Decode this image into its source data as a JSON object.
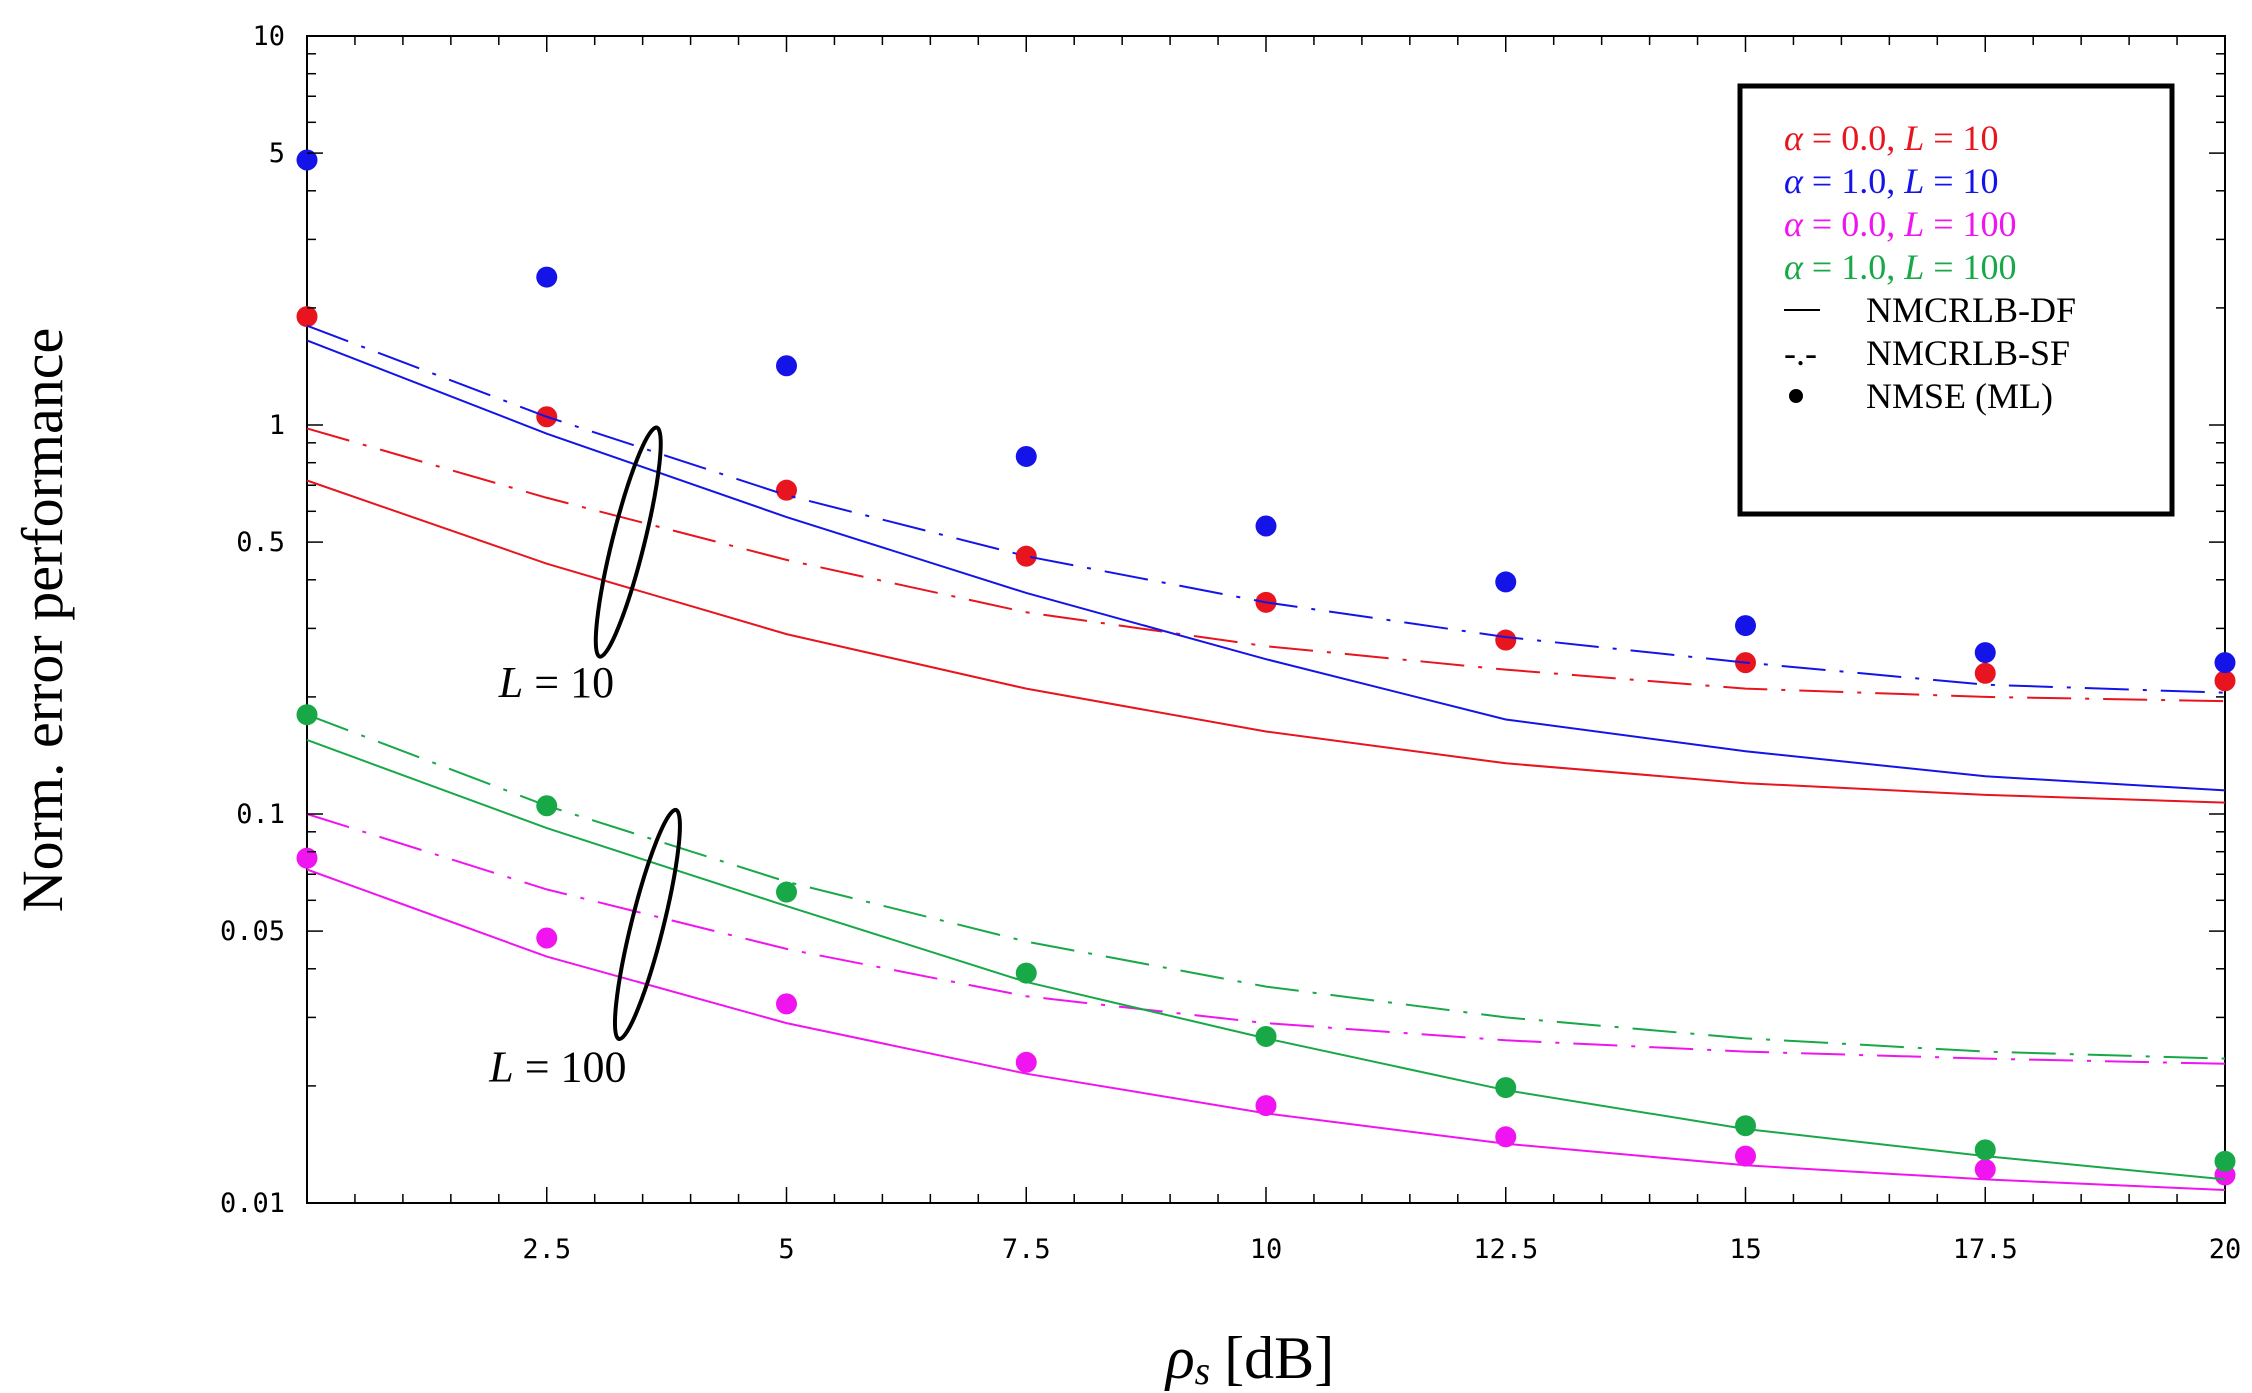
{
  "chart_data": {
    "type": "line",
    "title": "",
    "xlabel_symbol": "ρ",
    "xlabel_subscript": "s",
    "xlabel_unit": "[dB]",
    "ylabel": "Norm. error performance",
    "xlim": [
      0,
      20
    ],
    "ylim": [
      0.01,
      10
    ],
    "yscale": "log",
    "grid": false,
    "legend_position": "top-right",
    "xticks": [
      2.5,
      5,
      7.5,
      10,
      12.5,
      15,
      17.5,
      20
    ],
    "xtick_labels": [
      "2.5",
      "5",
      "7.5",
      "10",
      "12.5",
      "15",
      "17.5",
      "20"
    ],
    "yticks": [
      0.01,
      0.05,
      0.1,
      0.5,
      1,
      5,
      10
    ],
    "ytick_labels": [
      "0.01",
      "0.05",
      "0.1",
      "0.5",
      "1",
      "5",
      "10"
    ],
    "x": [
      0,
      2.5,
      5,
      7.5,
      10,
      12.5,
      15,
      17.5,
      20
    ],
    "series": [
      {
        "color": "#e8141e",
        "legend_parts": [
          "α",
          " = 0.0, ",
          "L",
          " = 10"
        ],
        "nmcrlb_df": [
          0.72,
          0.44,
          0.29,
          0.21,
          0.163,
          0.135,
          0.12,
          0.112,
          0.107
        ],
        "nmcrlb_sf": [
          0.98,
          0.65,
          0.45,
          0.33,
          0.27,
          0.235,
          0.21,
          0.2,
          0.195
        ],
        "nmse_ml": [
          1.9,
          1.05,
          0.68,
          0.46,
          0.35,
          0.28,
          0.245,
          0.23,
          0.22
        ]
      },
      {
        "color": "#1414e8",
        "legend_parts": [
          "α",
          " = 1.0, ",
          "L",
          " = 10"
        ],
        "nmcrlb_df": [
          1.65,
          0.95,
          0.58,
          0.37,
          0.25,
          0.175,
          0.145,
          0.125,
          0.115
        ],
        "nmcrlb_sf": [
          1.8,
          1.05,
          0.66,
          0.46,
          0.35,
          0.285,
          0.245,
          0.215,
          0.205
        ],
        "nmse_ml": [
          4.8,
          2.4,
          1.42,
          0.83,
          0.55,
          0.395,
          0.305,
          0.26,
          0.245
        ]
      },
      {
        "color": "#f014f0",
        "legend_parts": [
          "α",
          " = 0.0, ",
          "L",
          " = 100"
        ],
        "nmcrlb_df": [
          0.072,
          0.043,
          0.029,
          0.0215,
          0.017,
          0.0142,
          0.0125,
          0.0115,
          0.0108
        ],
        "nmcrlb_sf": [
          0.1,
          0.064,
          0.045,
          0.034,
          0.029,
          0.0262,
          0.0245,
          0.0235,
          0.0228
        ],
        "nmse_ml": [
          0.077,
          0.048,
          0.0325,
          0.023,
          0.0178,
          0.0148,
          0.0132,
          0.0122,
          0.0118
        ]
      },
      {
        "color": "#18a848",
        "legend_parts": [
          "α",
          " = 1.0, ",
          "L",
          " = 100"
        ],
        "nmcrlb_df": [
          0.155,
          0.092,
          0.058,
          0.037,
          0.0265,
          0.0195,
          0.0155,
          0.0132,
          0.0115
        ],
        "nmcrlb_sf": [
          0.18,
          0.105,
          0.067,
          0.047,
          0.036,
          0.03,
          0.0265,
          0.0245,
          0.0235
        ],
        "nmse_ml": [
          0.18,
          0.105,
          0.063,
          0.039,
          0.0268,
          0.0198,
          0.0158,
          0.0137,
          0.0128
        ]
      }
    ],
    "legend_styles": [
      {
        "marker": "line",
        "label": "NMCRLB-DF"
      },
      {
        "marker": "-.-",
        "label": "NMCRLB-SF"
      },
      {
        "marker": "dot",
        "label": "NMSE (ML)"
      }
    ],
    "annotations": [
      {
        "parts": [
          "L",
          " = 10"
        ]
      },
      {
        "parts": [
          "L",
          " = 100"
        ]
      }
    ]
  }
}
